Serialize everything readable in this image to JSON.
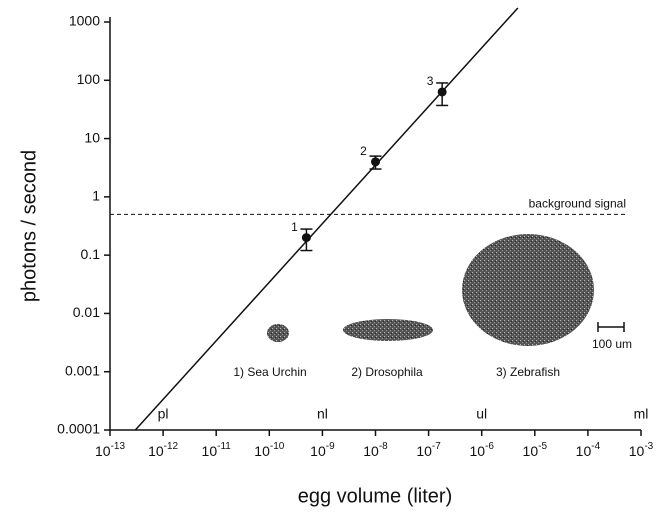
{
  "chart_data": {
    "type": "scatter",
    "xlabel": "egg volume (liter)",
    "ylabel": "photons / second",
    "xscale": "log",
    "yscale": "log",
    "xlim": [
      1e-13,
      0.001
    ],
    "ylim": [
      0.0001,
      1000
    ],
    "xticks": [
      {
        "value": 1e-13,
        "label": {
          "base": "10",
          "exp": "-13"
        }
      },
      {
        "value": 1e-12,
        "label": {
          "base": "10",
          "exp": "-12"
        }
      },
      {
        "value": 1e-11,
        "label": {
          "base": "10",
          "exp": "-11"
        }
      },
      {
        "value": 1e-10,
        "label": {
          "base": "10",
          "exp": "-10"
        }
      },
      {
        "value": 1e-09,
        "label": {
          "base": "10",
          "exp": "-9"
        }
      },
      {
        "value": 1e-08,
        "label": {
          "base": "10",
          "exp": "-8"
        }
      },
      {
        "value": 1e-07,
        "label": {
          "base": "10",
          "exp": "-7"
        }
      },
      {
        "value": 1e-06,
        "label": {
          "base": "10",
          "exp": "-6"
        }
      },
      {
        "value": 1e-05,
        "label": {
          "base": "10",
          "exp": "-5"
        }
      },
      {
        "value": 0.0001,
        "label": {
          "base": "10",
          "exp": "-4"
        }
      },
      {
        "value": 0.001,
        "label": {
          "base": "10",
          "exp": "-3"
        }
      }
    ],
    "yticks": [
      0.0001,
      0.001,
      0.01,
      0.1,
      1,
      10,
      100,
      1000
    ],
    "color": "#111111",
    "points": {
      "x": [
        5e-10,
        1e-08,
        1.8e-07
      ],
      "y": [
        0.2,
        4,
        63
      ],
      "y_low": [
        0.12,
        3,
        37
      ],
      "y_high": [
        0.28,
        5,
        90
      ],
      "labels": [
        "1",
        "2",
        "3"
      ]
    },
    "fit_line": {
      "x": [
        3e-13,
        4.8e-06
      ],
      "y": [
        0.0001,
        1740
      ]
    },
    "background": {
      "value": 0.5,
      "label": "background signal"
    },
    "unit_marks": [
      {
        "x": 1e-12,
        "label": "pl"
      },
      {
        "x": 1e-09,
        "label": "nl"
      },
      {
        "x": 1e-06,
        "label": "ul"
      },
      {
        "x": 0.001,
        "label": "ml"
      }
    ],
    "illustrations": [
      "1) Sea Urchin",
      "2) Drosophila",
      "3) Zebrafish"
    ],
    "scale_bar": "100 um"
  }
}
